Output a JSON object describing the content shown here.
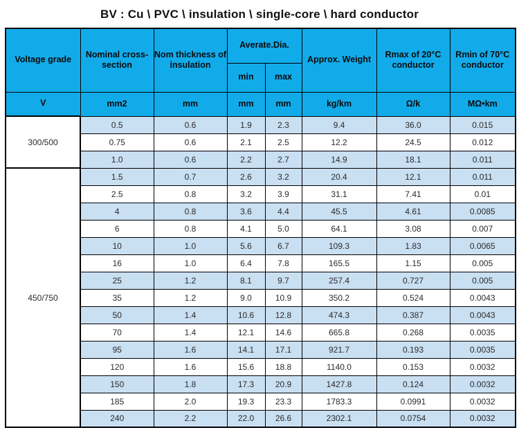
{
  "title": "BV : Cu \\ PVC \\  insulation \\ single-core  \\ hard conductor",
  "colors": {
    "header_bg": "#12abea",
    "stripe_row_bg": "#c9dff2",
    "plain_row_bg": "#ffffff",
    "border": "#000000"
  },
  "table": {
    "header": {
      "voltage_grade": "Voltage grade",
      "nominal_cross_section": "Nominal cross-section",
      "nom_thickness": "Nom thickness of insulation",
      "average_dia": "Averate.Dia.",
      "min": "min",
      "max": "max",
      "approx_weight": "Approx. Weight",
      "rmax": "Rmax of 20°C conductor",
      "rmin": "Rmin of 70°C conductor"
    },
    "units": {
      "voltage": "V",
      "cross_section": "mm2",
      "thickness": "mm",
      "min": "mm",
      "max": "mm",
      "weight": "kg/km",
      "rmax": "Ω/k",
      "rmin": "MΩ•km"
    },
    "groups": [
      {
        "voltage": "300/500",
        "rows": [
          [
            "0.5",
            "0.6",
            "1.9",
            "2.3",
            "9.4",
            "36.0",
            "0.015"
          ],
          [
            "0.75",
            "0.6",
            "2.1",
            "2.5",
            "12.2",
            "24.5",
            "0.012"
          ],
          [
            "1.0",
            "0.6",
            "2.2",
            "2.7",
            "14.9",
            "18.1",
            "0.011"
          ]
        ]
      },
      {
        "voltage": "450/750",
        "rows": [
          [
            "1.5",
            "0.7",
            "2.6",
            "3.2",
            "20.4",
            "12.1",
            "0.011"
          ],
          [
            "2.5",
            "0.8",
            "3.2",
            "3.9",
            "31.1",
            "7.41",
            "0.01"
          ],
          [
            "4",
            "0.8",
            "3.6",
            "4.4",
            "45.5",
            "4.61",
            "0.0085"
          ],
          [
            "6",
            "0.8",
            "4.1",
            "5.0",
            "64.1",
            "3.08",
            "0.007"
          ],
          [
            "10",
            "1.0",
            "5.6",
            "6.7",
            "109.3",
            "1.83",
            "0.0065"
          ],
          [
            "16",
            "1.0",
            "6.4",
            "7.8",
            "165.5",
            "1.15",
            "0.005"
          ],
          [
            "25",
            "1.2",
            "8.1",
            "9.7",
            "257.4",
            "0.727",
            "0.005"
          ],
          [
            "35",
            "1.2",
            "9.0",
            "10.9",
            "350.2",
            "0.524",
            "0.0043"
          ],
          [
            "50",
            "1.4",
            "10.6",
            "12.8",
            "474.3",
            "0.387",
            "0.0043"
          ],
          [
            "70",
            "1.4",
            "12.1",
            "14.6",
            "665.8",
            "0.268",
            "0.0035"
          ],
          [
            "95",
            "1.6",
            "14.1",
            "17.1",
            "921.7",
            "0.193",
            "0.0035"
          ],
          [
            "120",
            "1.6",
            "15.6",
            "18.8",
            "1140.0",
            "0.153",
            "0.0032"
          ],
          [
            "150",
            "1.8",
            "17.3",
            "20.9",
            "1427.8",
            "0.124",
            "0.0032"
          ],
          [
            "185",
            "2.0",
            "19.3",
            "23.3",
            "1783.3",
            "0.0991",
            "0.0032"
          ],
          [
            "240",
            "2.2",
            "22.0",
            "26.6",
            "2302.1",
            "0.0754",
            "0.0032"
          ]
        ]
      }
    ]
  }
}
